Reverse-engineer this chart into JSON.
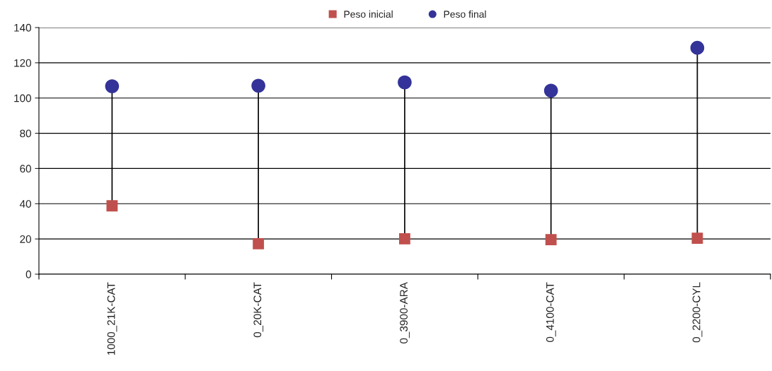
{
  "chart_data": {
    "type": "scatter",
    "categories": [
      "1000_21K-CAT",
      "0_20K-CAT",
      "0_3900-ARA",
      "0_4100-CAT",
      "0_2200-CYL"
    ],
    "series": [
      {
        "name": "Peso inicial",
        "color": "#c0504d",
        "marker": "square",
        "values": [
          38.8,
          17.3,
          20.1,
          19.6,
          20.4
        ]
      },
      {
        "name": "Peso final",
        "color": "#333399",
        "marker": "circle",
        "values": [
          106.7,
          107.0,
          108.9,
          104.2,
          128.5
        ]
      }
    ],
    "ylim": [
      0,
      140
    ],
    "yticks": [
      0,
      20,
      40,
      60,
      80,
      100,
      120,
      140
    ],
    "grid": "y",
    "legend": "top"
  }
}
